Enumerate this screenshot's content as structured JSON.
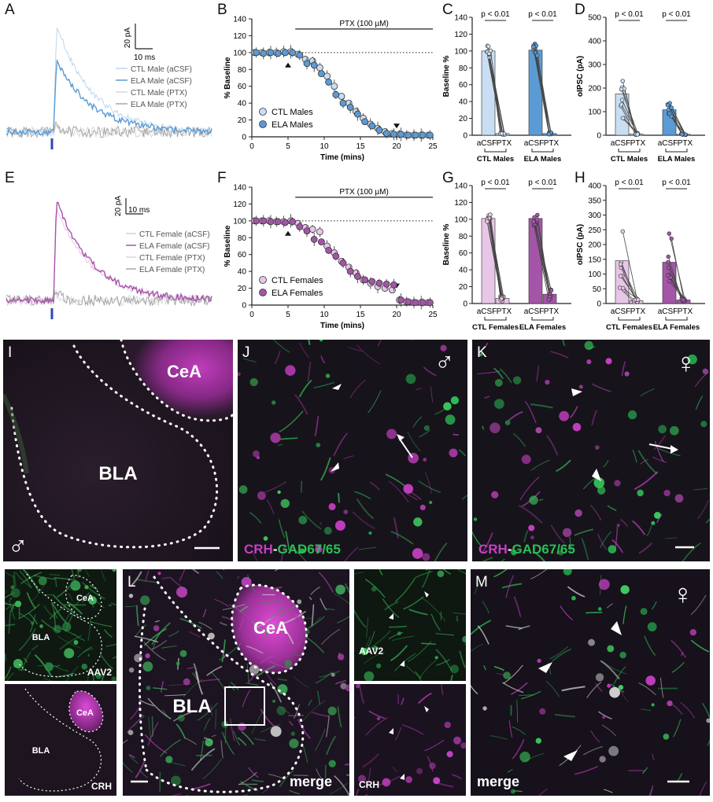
{
  "panels": {
    "A": "A",
    "B": "B",
    "C": "C",
    "D": "D",
    "E": "E",
    "F": "F",
    "G": "G",
    "H": "H",
    "I": "I",
    "J": "J",
    "K": "K",
    "L": "L",
    "M": "M"
  },
  "traces_male": {
    "scale_y": "20 pA",
    "scale_x": "10 ms",
    "legend": [
      "CTL Male (aCSF)",
      "ELA Male (aCSF)",
      "CTL Male (PTX)",
      "ELA Male (PTX)"
    ],
    "colors": [
      "#bcd7ef",
      "#5b9bd5",
      "#d8d8d8",
      "#a6a6a6"
    ]
  },
  "traces_female": {
    "scale_y": "20 pA",
    "scale_x": "10 ms",
    "legend": [
      "CTL Female (aCSF)",
      "ELA Female (aCSF)",
      "CTL Female (PTX)",
      "ELA Female (PTX)"
    ],
    "colors": [
      "#e8c6e8",
      "#a455a8",
      "#d8d8d8",
      "#a6a6a6"
    ]
  },
  "chart_data": [
    {
      "panel": "B",
      "type": "scatter",
      "xlabel": "Time (mins)",
      "ylabel": "% Baseline",
      "xlim": [
        0,
        25
      ],
      "ylim": [
        0,
        140
      ],
      "xticks": [
        "0",
        "5",
        "10",
        "15",
        "20",
        "25"
      ],
      "yticks": [
        "0",
        "20",
        "40",
        "60",
        "80",
        "100",
        "120",
        "140"
      ],
      "annotation": "PTX (100 µM)",
      "series": [
        {
          "name": "CTL Males",
          "color": "#c9def2",
          "x": [
            0.5,
            1.5,
            2.5,
            3.5,
            4.5,
            5.5,
            6.5,
            7.5,
            8.5,
            9.5,
            10.5,
            11.5,
            12.5,
            13.5,
            14.5,
            15.5,
            16.5,
            17.5,
            18.5,
            19.5,
            20.5,
            21.5,
            22.5,
            23.5,
            24.5
          ],
          "y": [
            100,
            100,
            100,
            100,
            101,
            101,
            98,
            92,
            90,
            82,
            72,
            60,
            48,
            40,
            30,
            22,
            15,
            10,
            6,
            4,
            3,
            2,
            2,
            2,
            2
          ]
        },
        {
          "name": "ELA Males",
          "color": "#5b9bd5",
          "x": [
            0.5,
            1.5,
            2.5,
            3.5,
            4.5,
            5.5,
            6.5,
            7.5,
            8.5,
            9.5,
            10.5,
            11.5,
            12.5,
            13.5,
            14.5,
            15.5,
            16.5,
            17.5,
            18.5,
            19.5,
            20.5,
            21.5,
            22.5,
            23.5,
            24.5
          ],
          "y": [
            100,
            99,
            100,
            99,
            100,
            100,
            97,
            87,
            85,
            75,
            65,
            50,
            40,
            35,
            27,
            18,
            13,
            8,
            4,
            3,
            3,
            2,
            2,
            2,
            2
          ]
        }
      ]
    },
    {
      "panel": "C",
      "type": "bar",
      "ylabel": "Baseline %",
      "ylim": [
        0,
        140
      ],
      "yticks": [
        "0",
        "20",
        "40",
        "60",
        "80",
        "100",
        "120",
        "140"
      ],
      "categories": [
        "aCSF",
        "PTX",
        "aCSF",
        "PTX"
      ],
      "groups": [
        "CTL Males",
        "ELA Males"
      ],
      "values": [
        100,
        2,
        101,
        2
      ],
      "colors": [
        "#c9def2",
        "#c9def2",
        "#5b9bd5",
        "#5b9bd5"
      ],
      "annotations": [
        "p < 0.01",
        "p < 0.01"
      ]
    },
    {
      "panel": "D",
      "type": "bar",
      "ylabel": "oIPSC (pA)",
      "ylim": [
        0,
        500
      ],
      "yticks": [
        "0",
        "100",
        "200",
        "300",
        "400",
        "500"
      ],
      "categories": [
        "aCSF",
        "PTX",
        "aCSF",
        "PTX"
      ],
      "groups": [
        "CTL Males",
        "ELA Males"
      ],
      "values": [
        175,
        5,
        108,
        4
      ],
      "colors": [
        "#c9def2",
        "#c9def2",
        "#5b9bd5",
        "#5b9bd5"
      ],
      "annotations": [
        "p < 0.01",
        "p < 0.01"
      ]
    },
    {
      "panel": "F",
      "type": "scatter",
      "xlabel": "Time (mins)",
      "ylabel": "% Baseline",
      "xlim": [
        0,
        25
      ],
      "ylim": [
        0,
        140
      ],
      "xticks": [
        "0",
        "5",
        "10",
        "15",
        "20",
        "25"
      ],
      "yticks": [
        "0",
        "20",
        "40",
        "60",
        "80",
        "100",
        "120",
        "140"
      ],
      "annotation": "PTX (100 µM)",
      "series": [
        {
          "name": "CTL Females",
          "color": "#e8c6e8",
          "x": [
            0.5,
            1.5,
            2.5,
            3.5,
            4.5,
            5.5,
            6.5,
            7.5,
            8.5,
            9.5,
            10.5,
            11.5,
            12.5,
            13.5,
            14.5,
            15.5,
            16.5,
            17.5,
            18.5,
            19.5,
            20.5,
            21.5,
            22.5,
            23.5,
            24.5
          ],
          "y": [
            100,
            100,
            100,
            99,
            99,
            100,
            97,
            92,
            90,
            87,
            70,
            62,
            52,
            45,
            38,
            30,
            26,
            22,
            20,
            18,
            6,
            4,
            3,
            3,
            3
          ]
        },
        {
          "name": "ELA Females",
          "color": "#a455a8",
          "x": [
            0.5,
            1.5,
            2.5,
            3.5,
            4.5,
            5.5,
            6.5,
            7.5,
            8.5,
            9.5,
            10.5,
            11.5,
            12.5,
            13.5,
            14.5,
            15.5,
            16.5,
            17.5,
            18.5,
            19.5,
            20.5,
            21.5,
            22.5,
            23.5,
            24.5
          ],
          "y": [
            100,
            100,
            99,
            99,
            98,
            99,
            93,
            88,
            78,
            75,
            65,
            58,
            50,
            40,
            34,
            30,
            28,
            26,
            25,
            24,
            6,
            4,
            3,
            3,
            3
          ]
        }
      ]
    },
    {
      "panel": "G",
      "type": "bar",
      "ylabel": "Baseline %",
      "ylim": [
        0,
        140
      ],
      "yticks": [
        "0",
        "20",
        "40",
        "60",
        "80",
        "100",
        "120",
        "140"
      ],
      "categories": [
        "aCSF",
        "PTX",
        "aCSF",
        "PTX"
      ],
      "groups": [
        "CTL Females",
        "ELA Females"
      ],
      "values": [
        101,
        6,
        101,
        11
      ],
      "colors": [
        "#e8c6e8",
        "#e8c6e8",
        "#a455a8",
        "#a455a8"
      ],
      "annotations": [
        "p < 0.01",
        "p < 0.01"
      ]
    },
    {
      "panel": "H",
      "type": "bar",
      "ylabel": "oIPSC (pA)",
      "ylim": [
        0,
        400
      ],
      "yticks": [
        "0",
        "50",
        "100",
        "150",
        "200",
        "250",
        "300",
        "350",
        "400"
      ],
      "categories": [
        "aCSF",
        "PTX",
        "aCSF",
        "PTX"
      ],
      "groups": [
        "CTL Females",
        "ELA Females"
      ],
      "values": [
        145,
        10,
        140,
        12
      ],
      "colors": [
        "#e8c6e8",
        "#e8c6e8",
        "#a455a8",
        "#a455a8"
      ],
      "annotations": [
        "p < 0.01",
        "p < 0.01"
      ]
    }
  ],
  "images": {
    "I": {
      "cea": "CeA",
      "bla": "BLA",
      "symbol": "♂"
    },
    "J": {
      "crh": "CRH",
      "dash": "-",
      "gad": "GAD67/65",
      "symbol": "♂"
    },
    "K": {
      "crh": "CRH",
      "dash": "-",
      "gad": "GAD67/65",
      "symbol": "♀"
    },
    "L_small_top": {
      "cea": "CeA",
      "bla": "BLA",
      "tag": "AAV2"
    },
    "L_small_bottom": {
      "cea": "CeA",
      "bla": "BLA",
      "tag": "CRH"
    },
    "L": {
      "cea": "CeA",
      "bla": "BLA",
      "tag": "merge"
    },
    "L_zoom_top": {
      "tag": "AAV2"
    },
    "L_zoom_bottom": {
      "tag": "CRH"
    },
    "M": {
      "tag": "merge",
      "symbol": "♀"
    }
  }
}
